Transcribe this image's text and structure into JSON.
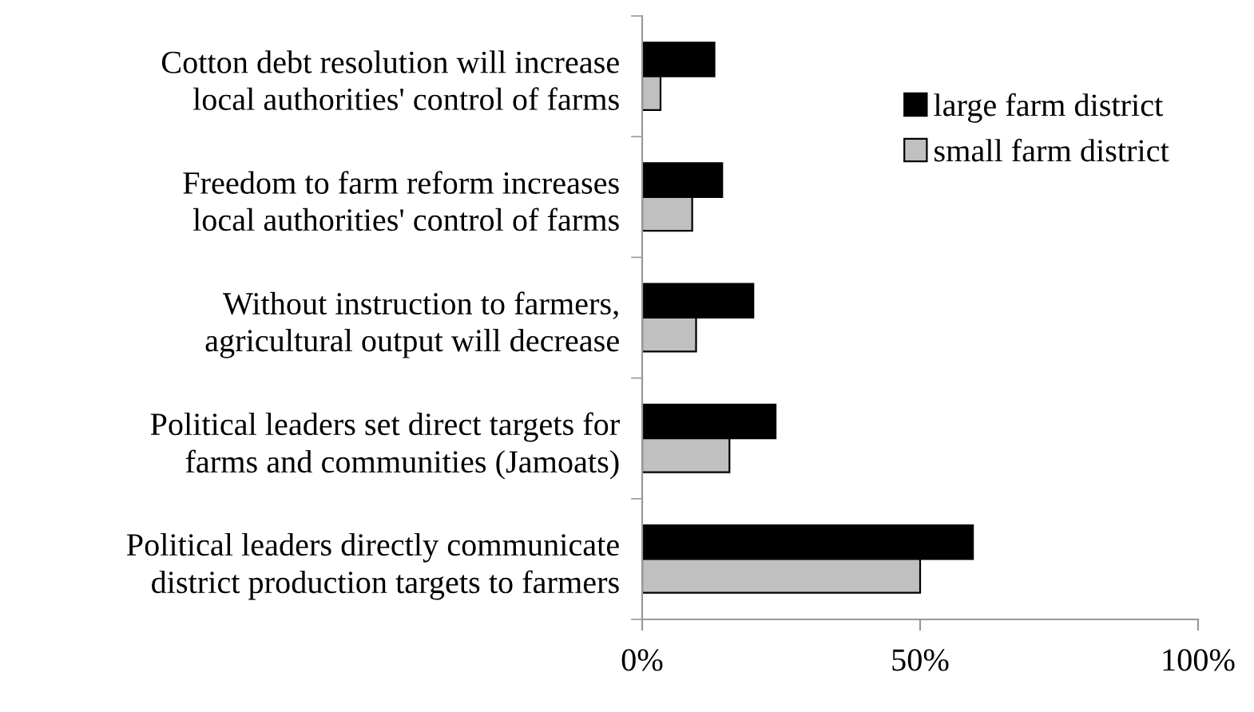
{
  "chart_data": {
    "type": "bar",
    "orientation": "horizontal",
    "categories": [
      "Cotton debt resolution will increase\nlocal authorities' control of farms",
      "Freedom to farm reform increases\nlocal authorities' control of farms",
      "Without instruction to farmers,\nagricultural output will decrease",
      "Political leaders set direct targets for\nfarms and communities (Jamoats)",
      "Political leaders directly communicate\ndistrict production targets to farmers"
    ],
    "series": [
      {
        "name": "large farm district",
        "color": "#000000",
        "values": [
          13,
          14.4,
          20,
          24,
          59.5
        ]
      },
      {
        "name": "small farm district",
        "color": "#c0c0c0",
        "values": [
          3.3,
          9,
          9.7,
          15.7,
          50
        ]
      }
    ],
    "xlim": [
      0,
      100
    ],
    "xticks": [
      {
        "value": 0,
        "label": "0%"
      },
      {
        "value": 50,
        "label": "50%"
      },
      {
        "value": 100,
        "label": "100%"
      }
    ],
    "grid": false,
    "legend": "top right"
  }
}
